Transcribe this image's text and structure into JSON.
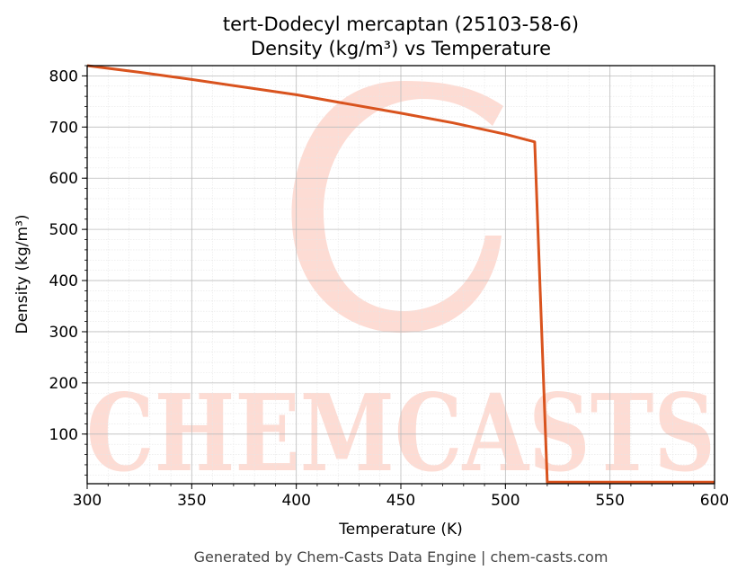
{
  "chart_data": {
    "type": "line",
    "title": "tert-Dodecyl mercaptan (25103-58-6)",
    "subtitle": "Density (kg/m³) vs Temperature",
    "xlabel": "Temperature (K)",
    "ylabel": "Density (kg/m³)",
    "xlim": [
      300,
      600
    ],
    "ylim": [
      3,
      820
    ],
    "x_ticks": [
      300,
      350,
      400,
      450,
      500,
      550,
      600
    ],
    "y_ticks": [
      100,
      200,
      300,
      400,
      500,
      600,
      700,
      800
    ],
    "grid": true,
    "legend": "none",
    "series": [
      {
        "color": "#d9531e",
        "x": [
          300,
          325,
          350,
          375,
          400,
          425,
          450,
          475,
          500,
          514,
          520,
          530,
          550,
          575,
          600
        ],
        "y": [
          820,
          807,
          793,
          778,
          763,
          745,
          727,
          708,
          686,
          671,
          6,
          6,
          6,
          6,
          6
        ]
      }
    ]
  },
  "watermark": {
    "text": "CHEMCASTS",
    "color": "#fddcd4"
  },
  "footer": "Generated by Chem-Casts Data Engine | chem-casts.com"
}
